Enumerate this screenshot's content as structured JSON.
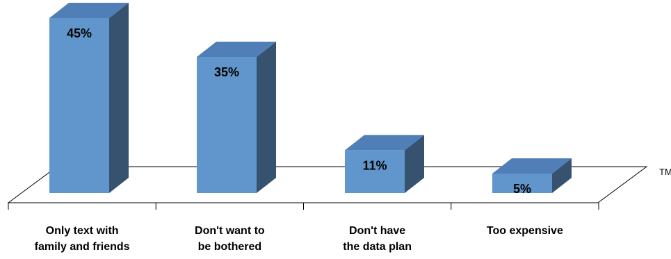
{
  "chart_data": {
    "type": "bar",
    "categories": [
      [
        "Only text with",
        "family and friends"
      ],
      [
        "Don't want to",
        "be bothered"
      ],
      [
        "Don't have",
        "the data plan"
      ],
      [
        "Too expensive"
      ]
    ],
    "values": [
      45,
      35,
      11,
      5
    ],
    "data_labels": [
      "45%",
      "35%",
      "11%",
      "5%"
    ],
    "value_format": "percent",
    "ylim": [
      0,
      50
    ],
    "three_d": true,
    "grid": false,
    "colors": {
      "bar_front": "#6196cc",
      "bar_top": "#4f7fb6",
      "bar_side": "#36526f",
      "outline": "#000000"
    }
  },
  "corner_mark": "TM"
}
